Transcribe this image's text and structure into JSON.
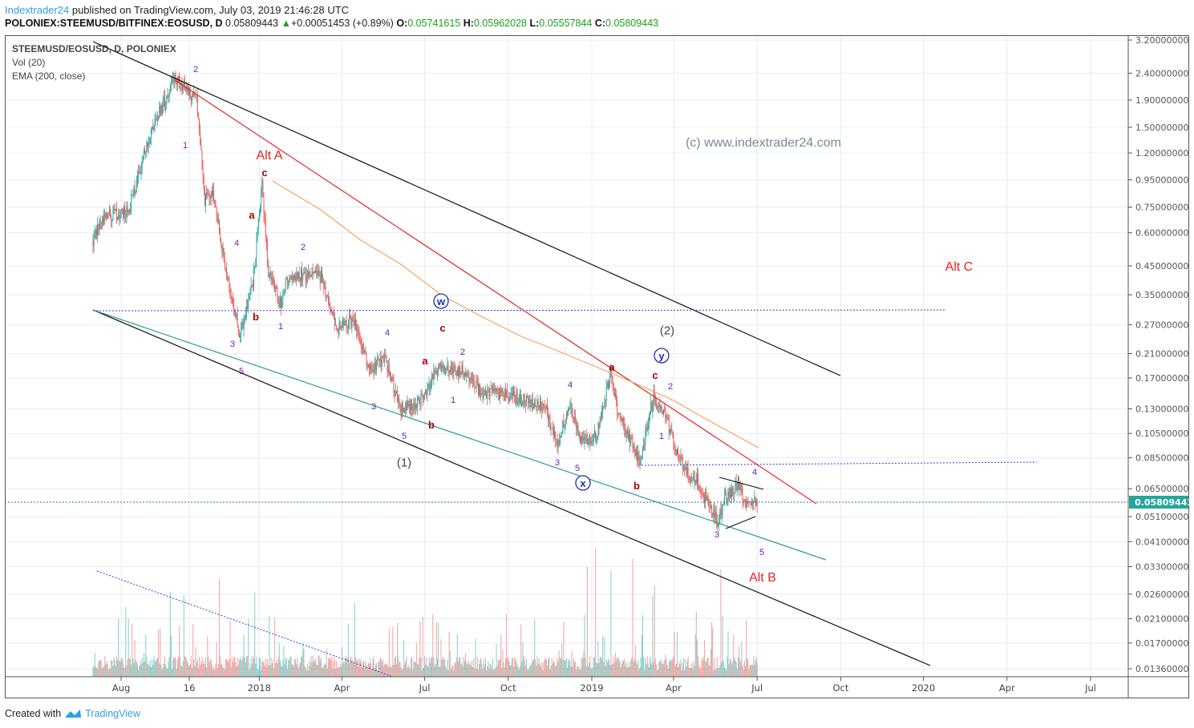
{
  "header": {
    "author": "Indextrader24",
    "published": " published on TradingView.com, July 03, 2019 21:46:28 UTC",
    "symbol": "POLONIEX:STEEMUSD/BITFINEX:EOSUSD, D",
    "last": "0.05809443",
    "change": "+0.00051453 (+0.89%)",
    "o_label": "O:",
    "o": "0.05741615",
    "h_label": "H:",
    "h": "0.05962028",
    "l_label": "L:",
    "l": "0.05557844",
    "c_label": "C:",
    "c": "0.05809443"
  },
  "legend": {
    "title": "STEEMUSD/EOSUSD, D, POLONIEX",
    "volume": "Vol (20)",
    "ema": "EMA (200, close)"
  },
  "watermark": "(c) www.indextrader24.com",
  "footer": {
    "created": "Created with",
    "brand": "TradingView"
  },
  "colors": {
    "up": "#26a69a",
    "down": "#ef5350",
    "ema": "#f7a35c",
    "price_tag": "#26a69a",
    "wave_purple": "#6a1fb0",
    "wave_red": "#b00000",
    "alt_red": "#e8231f"
  },
  "chart_data": {
    "type": "candlestick",
    "scale": "log",
    "x_unit": "days since 2019-01-01",
    "price_path": [
      [
        -549,
        0.56
      ],
      [
        -537,
        0.69
      ],
      [
        -510,
        0.73
      ],
      [
        -484,
        1.49
      ],
      [
        -459,
        2.26
      ],
      [
        -435,
        1.9
      ],
      [
        -426,
        0.8
      ],
      [
        -417,
        0.85
      ],
      [
        -404,
        0.46
      ],
      [
        -387,
        0.245
      ],
      [
        -373,
        0.39
      ],
      [
        -363,
        0.91
      ],
      [
        -356,
        0.42
      ],
      [
        -342,
        0.32
      ],
      [
        -334,
        0.42
      ],
      [
        -298,
        0.41
      ],
      [
        -281,
        0.26
      ],
      [
        -263,
        0.28
      ],
      [
        -245,
        0.185
      ],
      [
        -228,
        0.2
      ],
      [
        -210,
        0.13
      ],
      [
        -192,
        0.135
      ],
      [
        -170,
        0.185
      ],
      [
        -139,
        0.18
      ],
      [
        -122,
        0.15
      ],
      [
        -86,
        0.145
      ],
      [
        -51,
        0.13
      ],
      [
        -38,
        0.095
      ],
      [
        -25,
        0.135
      ],
      [
        -11,
        0.097
      ],
      [
        6,
        0.105
      ],
      [
        21,
        0.18
      ],
      [
        28,
        0.125
      ],
      [
        53,
        0.083
      ],
      [
        68,
        0.145
      ],
      [
        81,
        0.125
      ],
      [
        90,
        0.097
      ],
      [
        103,
        0.076
      ],
      [
        117,
        0.07
      ],
      [
        125,
        0.06
      ],
      [
        139,
        0.049
      ],
      [
        147,
        0.0605
      ],
      [
        161,
        0.068
      ],
      [
        169,
        0.056
      ],
      [
        182,
        0.05809443
      ]
    ],
    "y_ticks": [
      "3.20000000",
      "2.40000000",
      "1.90000000",
      "1.50000000",
      "1.20000000",
      "0.95000000",
      "0.75000000",
      "0.60000000",
      "0.45000000",
      "0.35000000",
      "0.27000000",
      "0.21000000",
      "0.17000000",
      "0.13000000",
      "0.10500000",
      "0.08500000",
      "0.06500000",
      "0.05100000",
      "0.04100000",
      "0.03300000",
      "0.02600000",
      "0.02100000",
      "0.01700000",
      "0.01360000"
    ],
    "x_ticks": [
      {
        "label": "Aug",
        "day": -518
      },
      {
        "label": "16",
        "day": -443
      },
      {
        "label": "2018",
        "day": -366
      },
      {
        "label": "Apr",
        "day": -275
      },
      {
        "label": "Jul",
        "day": -184
      },
      {
        "label": "Oct",
        "day": -92
      },
      {
        "label": "2019",
        "day": 0
      },
      {
        "label": "Apr",
        "day": 90
      },
      {
        "label": "Jul",
        "day": 182
      },
      {
        "label": "Oct",
        "day": 274
      },
      {
        "label": "2020",
        "day": 365
      },
      {
        "label": "Apr",
        "day": 457
      },
      {
        "label": "Jul",
        "day": 549
      }
    ],
    "current_price": "0.05809443",
    "ylim": [
      0.0136,
      3.2
    ],
    "annotations": [
      "2",
      "1",
      "Alt A",
      "c",
      "a",
      "4",
      "2",
      "b",
      "1",
      "3",
      "5",
      "4",
      "c",
      "2",
      "a",
      "1",
      "3",
      "b",
      "5",
      "(1)",
      "4",
      "3",
      "5",
      "b",
      "a",
      "c",
      "2",
      "1",
      "(2)",
      "4",
      "3",
      "5",
      "Alt B",
      "Alt C",
      "w",
      "x",
      "y"
    ]
  }
}
